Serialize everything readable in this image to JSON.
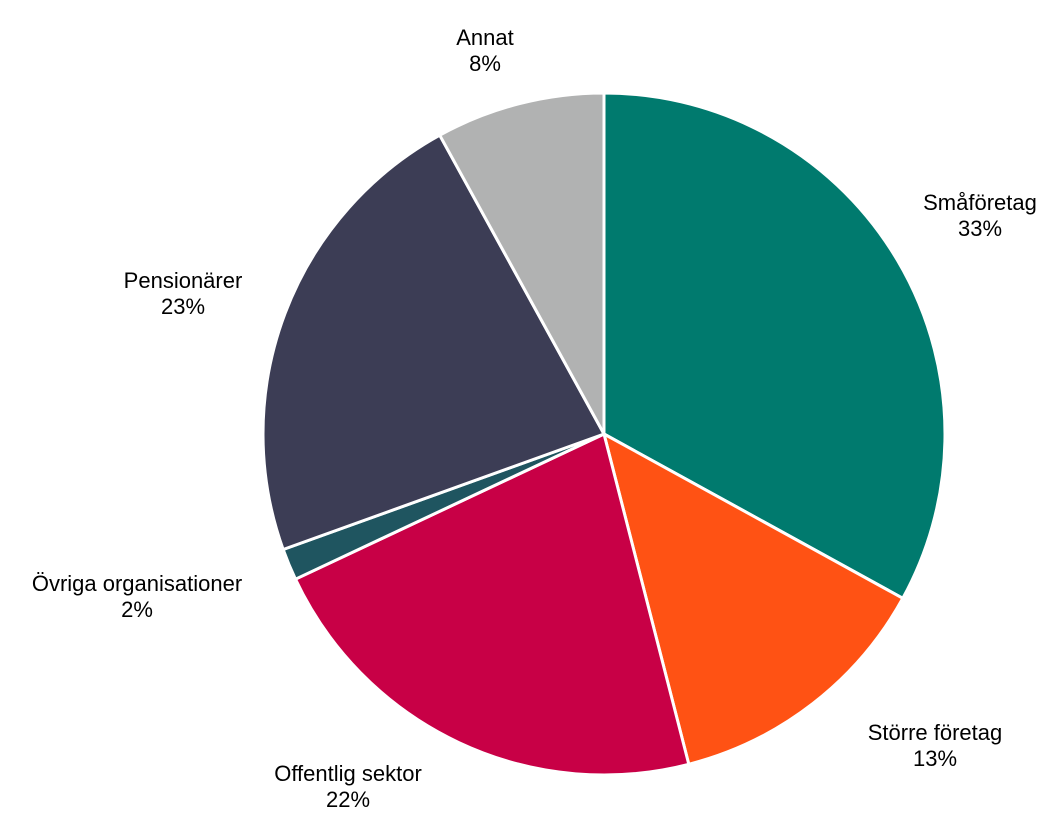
{
  "chart_data": {
    "type": "pie",
    "start_angle_deg": 0,
    "direction": "clockwise",
    "slices": [
      {
        "label": "Småföretag",
        "value": 33,
        "percent_label": "33%",
        "color": "#007A6E"
      },
      {
        "label": "Större företag",
        "value": 13,
        "percent_label": "13%",
        "color": "#FF5214"
      },
      {
        "label": "Offentlig sektor",
        "value": 22,
        "percent_label": "22%",
        "color": "#C80046"
      },
      {
        "label": "Övriga organisationer",
        "value": 1.5,
        "percent_label": "2%",
        "color": "#1F5560"
      },
      {
        "label": "Pensionärer",
        "value": 22.5,
        "percent_label": "23%",
        "color": "#3C3D55"
      },
      {
        "label": "Annat",
        "value": 8,
        "percent_label": "8%",
        "color": "#B1B2B2"
      }
    ],
    "legend": "none",
    "slice_border_color": "#ffffff"
  }
}
